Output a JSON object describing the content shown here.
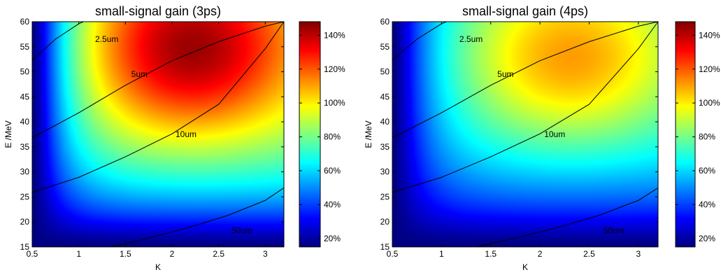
{
  "chart_data": [
    {
      "type": "heatmap",
      "title": "small-signal gain (3ps)",
      "xlabel": "K",
      "ylabel": "E /MeV",
      "xlim": [
        0.5,
        3.2
      ],
      "ylim": [
        15,
        60
      ],
      "xticks": [
        0.5,
        1,
        1.5,
        2,
        2.5,
        3
      ],
      "yticks": [
        15,
        20,
        25,
        30,
        35,
        40,
        45,
        50,
        55,
        60
      ],
      "colormap": "jet",
      "colorbar": {
        "min": 15,
        "max": 148,
        "ticks": [
          20,
          40,
          60,
          80,
          100,
          120,
          140
        ],
        "unit": "%"
      },
      "peak": {
        "K": 2.2,
        "E": 54,
        "value": 148
      },
      "contours": [
        {
          "label": "2.5um",
          "label_at": [
            1.3,
            56.5
          ],
          "points": [
            [
              0.5,
              52.3
            ],
            [
              0.75,
              56.5
            ],
            [
              1.0,
              59.6
            ],
            [
              1.05,
              60
            ]
          ]
        },
        {
          "label": "5um",
          "label_at": [
            1.65,
            49.5
          ],
          "points": [
            [
              0.5,
              36.8
            ],
            [
              1.0,
              41.8
            ],
            [
              1.5,
              47.3
            ],
            [
              2.0,
              52.2
            ],
            [
              2.5,
              56.0
            ],
            [
              3.0,
              59.1
            ],
            [
              3.2,
              60
            ]
          ]
        },
        {
          "label": "10um",
          "label_at": [
            2.15,
            37.5
          ],
          "points": [
            [
              0.5,
              25.9
            ],
            [
              1.0,
              28.9
            ],
            [
              1.5,
              33.0
            ],
            [
              2.0,
              37.6
            ],
            [
              2.5,
              43.5
            ],
            [
              3.0,
              54.6
            ],
            [
              3.2,
              60
            ]
          ]
        },
        {
          "label": "50um",
          "label_at": [
            2.75,
            18.3
          ],
          "points": [
            [
              1.35,
              15
            ],
            [
              1.8,
              17.0
            ],
            [
              2.2,
              19.0
            ],
            [
              2.6,
              21.3
            ],
            [
              3.0,
              24.3
            ],
            [
              3.2,
              26.8
            ]
          ]
        }
      ]
    },
    {
      "type": "heatmap",
      "title": "small-signal gain (4ps)",
      "xlabel": "K",
      "ylabel": "E /MeV",
      "xlim": [
        0.5,
        3.2
      ],
      "ylim": [
        15,
        60
      ],
      "xticks": [
        0.5,
        1,
        1.5,
        2,
        2.5,
        3
      ],
      "yticks": [
        15,
        20,
        25,
        30,
        35,
        40,
        45,
        50,
        55,
        60
      ],
      "colormap": "jet",
      "colorbar": {
        "min": 15,
        "max": 148,
        "ticks": [
          20,
          40,
          60,
          80,
          100,
          120,
          140
        ],
        "unit": "%"
      },
      "peak": {
        "K": 2.3,
        "E": 52,
        "value": 114
      },
      "contours": [
        {
          "label": "2.5um",
          "label_at": [
            1.3,
            56.5
          ],
          "points": [
            [
              0.5,
              52.3
            ],
            [
              0.75,
              56.5
            ],
            [
              1.0,
              59.6
            ],
            [
              1.05,
              60
            ]
          ]
        },
        {
          "label": "5um",
          "label_at": [
            1.65,
            49.5
          ],
          "points": [
            [
              0.5,
              36.8
            ],
            [
              1.0,
              41.8
            ],
            [
              1.5,
              47.3
            ],
            [
              2.0,
              52.2
            ],
            [
              2.5,
              56.0
            ],
            [
              3.0,
              59.1
            ],
            [
              3.2,
              60
            ]
          ]
        },
        {
          "label": "10um",
          "label_at": [
            2.15,
            37.5
          ],
          "points": [
            [
              0.5,
              25.9
            ],
            [
              1.0,
              28.9
            ],
            [
              1.5,
              33.0
            ],
            [
              2.0,
              37.6
            ],
            [
              2.5,
              43.5
            ],
            [
              3.0,
              54.6
            ],
            [
              3.2,
              60
            ]
          ]
        },
        {
          "label": "50um",
          "label_at": [
            2.75,
            18.3
          ],
          "points": [
            [
              1.35,
              15
            ],
            [
              1.8,
              17.0
            ],
            [
              2.2,
              19.0
            ],
            [
              2.6,
              21.3
            ],
            [
              3.0,
              24.3
            ],
            [
              3.2,
              26.8
            ]
          ]
        }
      ]
    }
  ]
}
